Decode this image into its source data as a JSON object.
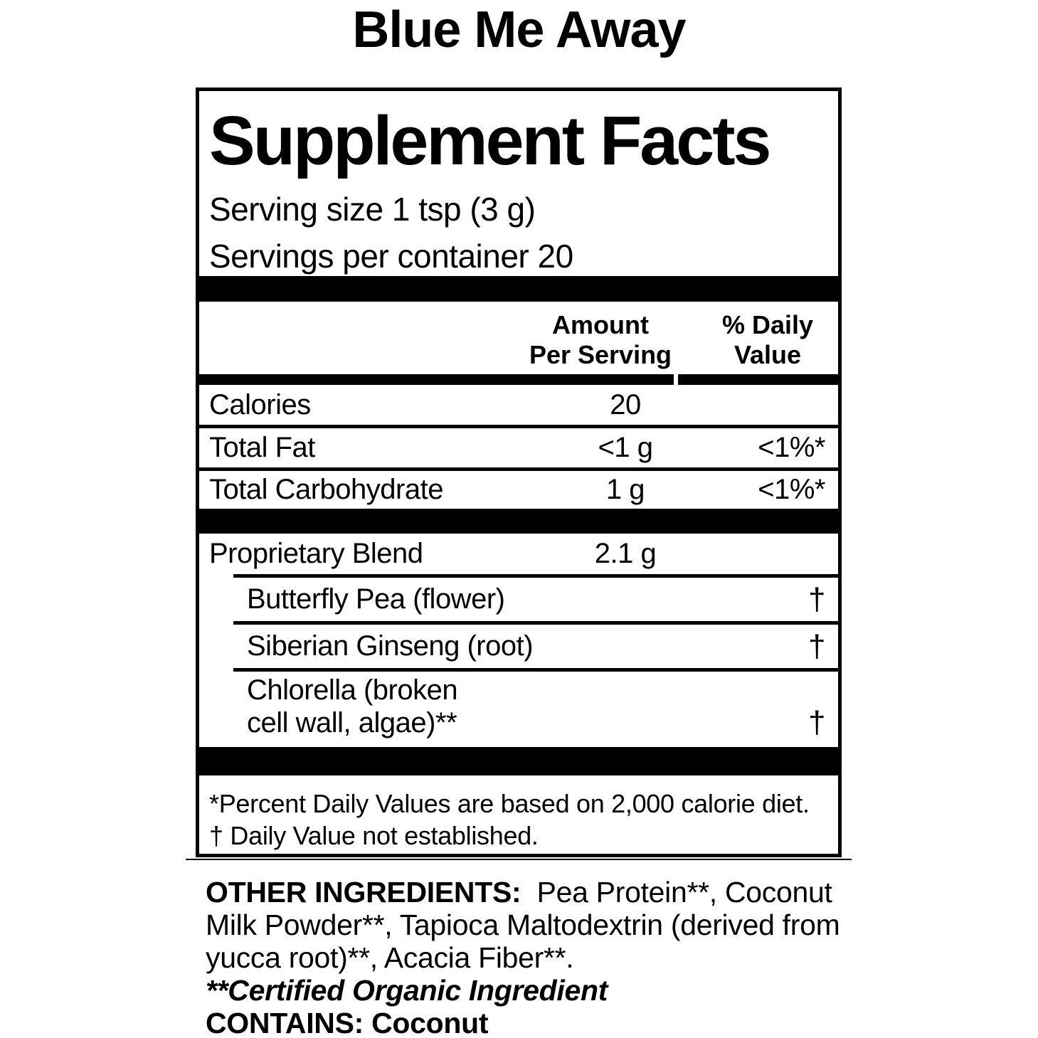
{
  "product": {
    "title": "Blue Me Away"
  },
  "panel": {
    "title": "Supplement Facts",
    "serving_size": "Serving size 1 tsp (3 g)",
    "servings_per_container": "Servings per container 20",
    "header": {
      "amount_line1": "Amount",
      "amount_line2": "Per Serving",
      "dv_line1": "% Daily",
      "dv_line2": "Value"
    },
    "nutrients": [
      {
        "name": "Calories",
        "amount": "20",
        "dv": ""
      },
      {
        "name": "Total Fat",
        "amount": "<1 g",
        "dv": "<1%*"
      },
      {
        "name": "Total Carbohydrate",
        "amount": "1 g",
        "dv": "<1%*"
      }
    ],
    "blend": {
      "name": "Proprietary Blend",
      "amount": "2.1 g",
      "ingredients": [
        {
          "name": "Butterfly Pea (flower)",
          "dv": "†"
        },
        {
          "name": "Siberian Ginseng (root)",
          "dv": "†"
        },
        {
          "name_line1": "Chlorella (broken",
          "name_line2": "cell wall, algae)**",
          "dv": "†"
        }
      ]
    },
    "footnotes": {
      "percent": "*Percent Daily Values are based on 2,000 calorie diet.",
      "dagger": "† Daily Value not established."
    }
  },
  "other_ingredients": {
    "label": "OTHER INGREDIENTS:",
    "line1_rest": "  Pea Protein**, Coconut",
    "line2": "Milk Powder**, Tapioca Maltodextrin (derived from",
    "line3": "yucca root)**, Acacia Fiber**.",
    "organic_note": "**Certified Organic Ingredient",
    "contains": "CONTAINS: Coconut"
  },
  "colors": {
    "ink": "#000000",
    "background": "#ffffff"
  }
}
